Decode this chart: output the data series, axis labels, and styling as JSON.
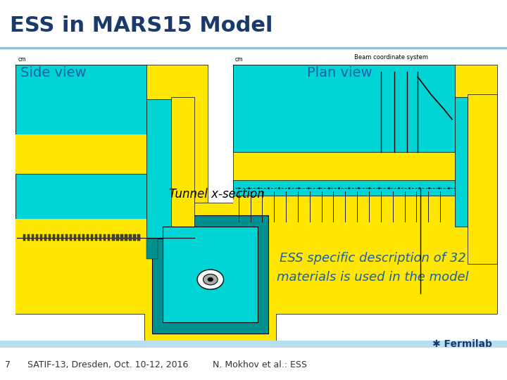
{
  "title": "ESS in MARS15 Model",
  "title_color": "#1a3a6b",
  "title_fontsize": 22,
  "bg_color": "#ffffff",
  "header_line_color": "#7ec8e3",
  "footer_bar_color": "#b8dff0",
  "footer_text_left": "7      SATIF-13, Dresden, Oct. 10-12, 2016",
  "footer_text_right": "N. Mokhov et al.: ESS",
  "footer_fontsize": 9,
  "footer_text_color": "#333333",
  "side_view_label": "Side view",
  "plan_view_label": "Plan view",
  "tunnel_label": "Tunnel x-section",
  "ess_desc_line1": "ESS specific description of 32",
  "ess_desc_line2": "materials is used in the model",
  "ess_desc_color": "#1a5fa8",
  "ess_desc_fontsize": 13,
  "label_fontsize": 14,
  "label_color": "#1a5fa8",
  "yellow": "#ffe600",
  "cyan": "#00d4d4",
  "dark_cyan": "#009090",
  "fermilab_color": "#1a3a6b"
}
